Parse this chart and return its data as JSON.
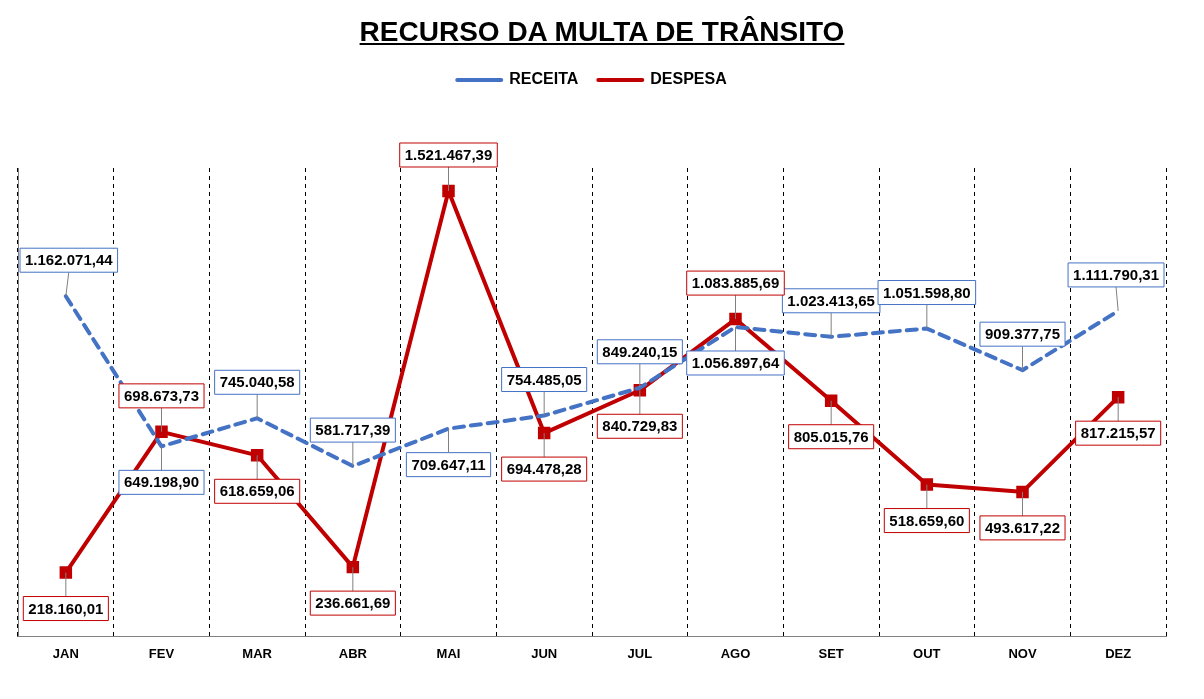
{
  "chart_data": {
    "type": "line",
    "title": "RECURSO DA MULTA DE TRÂNSITO",
    "categories": [
      "JAN",
      "FEV",
      "MAR",
      "ABR",
      "MAI",
      "JUN",
      "JUL",
      "AGO",
      "SET",
      "OUT",
      "NOV",
      "DEZ"
    ],
    "series": [
      {
        "name": "RECEITA",
        "color": "#4472c4",
        "line_style": "dashed",
        "marker": "none",
        "values": [
          1162071.44,
          649198.9,
          745040.58,
          581717.39,
          709647.11,
          754485.05,
          849240.15,
          1056897.64,
          1023413.65,
          1051598.8,
          909377.75,
          1111790.31
        ],
        "value_labels": [
          "1.162.071,44",
          "649.198,90",
          "745.040,58",
          "581.717,39",
          "709.647,11",
          "754.485,05",
          "849.240,15",
          "1.056.897,64",
          "1.023.413,65",
          "1.051.598,80",
          "909.377,75",
          "1.111.790,31"
        ]
      },
      {
        "name": "DESPESA",
        "color": "#c00000",
        "line_style": "solid",
        "marker": "square",
        "values": [
          218160.01,
          698673.73,
          618659.06,
          236661.69,
          1521467.39,
          694478.28,
          840729.83,
          1083885.69,
          805015.76,
          518659.6,
          493617.22,
          817215.57
        ],
        "value_labels": [
          "218.160,01",
          "698.673,73",
          "618.659,06",
          "236.661,69",
          "1.521.467,39",
          "694.478,28",
          "840.729,83",
          "1.083.885,69",
          "805.015,76",
          "518.659,60",
          "493.617,22",
          "817.215,57"
        ]
      }
    ],
    "ylim": [
      0,
      1600000
    ],
    "tick_labels": "x",
    "grid": "x",
    "legend": "top"
  }
}
